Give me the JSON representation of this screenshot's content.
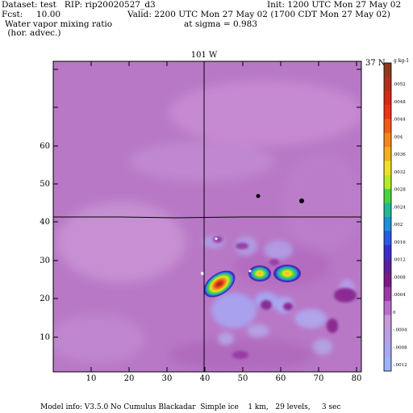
{
  "header": {
    "dataset": "Dataset: test   RIP: rip20020527_d3",
    "init": "Init: 1200 UTC Mon 27 May 02",
    "fcst": "Fcst:     10.00",
    "valid": "Valid: 2200 UTC Mon 27 May 02 (1700 CDT Mon 27 May 02)",
    "field": "Water vapor mixing ratio",
    "sigma": "at sigma = 0.983",
    "advec": " (hor. advec.)"
  },
  "map": {
    "top_label_101w": "101 W",
    "right_label_37n": "37 N",
    "x_ticks": [
      "10",
      "20",
      "30",
      "40",
      "50",
      "60",
      "70",
      "80"
    ],
    "y_ticks": [
      "10",
      "20",
      "30",
      "40",
      "50",
      "60"
    ]
  },
  "colorbar": {
    "unit": "g kg-1",
    "labels": [
      ".0052",
      ".0048",
      ".0044",
      ".004",
      ".0036",
      ".0032",
      ".0028",
      ".0024",
      ".002",
      ".0016",
      ".0012",
      ".0008",
      ".0004",
      "0",
      "-.0004",
      "-.0008",
      "-.0012"
    ],
    "colors": [
      "#8b3a1f",
      "#b0301c",
      "#d42a1a",
      "#ec3418",
      "#f25a18",
      "#f2861c",
      "#f2b020",
      "#efe028",
      "#b6ea28",
      "#4cd23c",
      "#22b896",
      "#1f8fd6",
      "#2a5ae0",
      "#3a2ec6",
      "#5a229a",
      "#7a1a86",
      "#9a3aa6",
      "#b86ec8",
      "#c79ad8",
      "#b8a0e4",
      "#a8a8f0",
      "#9cb4ff"
    ]
  },
  "footer": {
    "model_info": "Model info: V3.5.0 No Cumulus Blackadar  Simple ice    1 km,   29 levels,     3 sec"
  }
}
